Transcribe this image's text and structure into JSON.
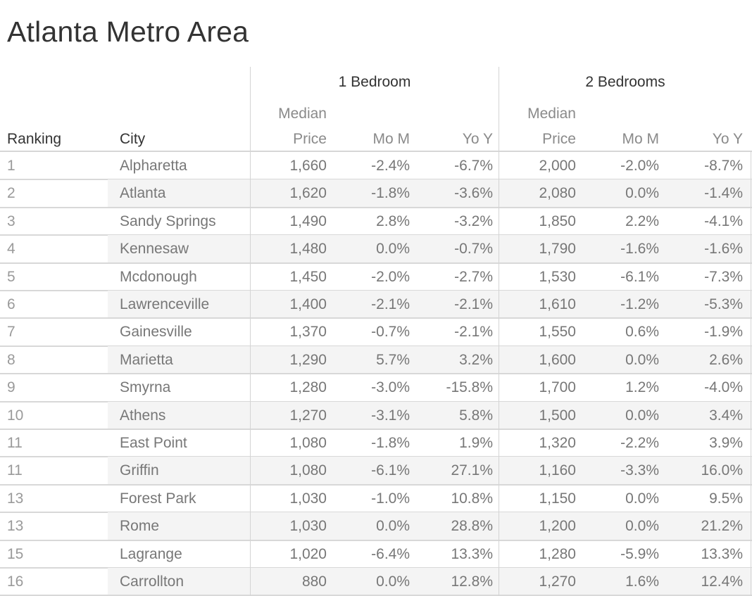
{
  "title": "Atlanta Metro Area",
  "headers": {
    "ranking": "Ranking",
    "city": "City",
    "group1": "1 Bedroom",
    "group2": "2 Bedrooms",
    "median_top": "Median",
    "median_bottom": "Price",
    "mom": "Mo M",
    "yoy": "Yo Y"
  },
  "rows": [
    {
      "rank": "1",
      "city": "Alpharetta",
      "p1": "1,660",
      "m1": "-2.4%",
      "y1": "-6.7%",
      "p2": "2,000",
      "m2": "-2.0%",
      "y2": "-8.7%"
    },
    {
      "rank": "2",
      "city": "Atlanta",
      "p1": "1,620",
      "m1": "-1.8%",
      "y1": "-3.6%",
      "p2": "2,080",
      "m2": "0.0%",
      "y2": "-1.4%"
    },
    {
      "rank": "3",
      "city": "Sandy Springs",
      "p1": "1,490",
      "m1": "2.8%",
      "y1": "-3.2%",
      "p2": "1,850",
      "m2": "2.2%",
      "y2": "-4.1%"
    },
    {
      "rank": "4",
      "city": "Kennesaw",
      "p1": "1,480",
      "m1": "0.0%",
      "y1": "-0.7%",
      "p2": "1,790",
      "m2": "-1.6%",
      "y2": "-1.6%"
    },
    {
      "rank": "5",
      "city": "Mcdonough",
      "p1": "1,450",
      "m1": "-2.0%",
      "y1": "-2.7%",
      "p2": "1,530",
      "m2": "-6.1%",
      "y2": "-7.3%"
    },
    {
      "rank": "6",
      "city": "Lawrenceville",
      "p1": "1,400",
      "m1": "-2.1%",
      "y1": "-2.1%",
      "p2": "1,610",
      "m2": "-1.2%",
      "y2": "-5.3%"
    },
    {
      "rank": "7",
      "city": "Gainesville",
      "p1": "1,370",
      "m1": "-0.7%",
      "y1": "-2.1%",
      "p2": "1,550",
      "m2": "0.6%",
      "y2": "-1.9%"
    },
    {
      "rank": "8",
      "city": "Marietta",
      "p1": "1,290",
      "m1": "5.7%",
      "y1": "3.2%",
      "p2": "1,600",
      "m2": "0.0%",
      "y2": "2.6%"
    },
    {
      "rank": "9",
      "city": "Smyrna",
      "p1": "1,280",
      "m1": "-3.0%",
      "y1": "-15.8%",
      "p2": "1,700",
      "m2": "1.2%",
      "y2": "-4.0%"
    },
    {
      "rank": "10",
      "city": "Athens",
      "p1": "1,270",
      "m1": "-3.1%",
      "y1": "5.8%",
      "p2": "1,500",
      "m2": "0.0%",
      "y2": "3.4%"
    },
    {
      "rank": "11",
      "city": "East Point",
      "p1": "1,080",
      "m1": "-1.8%",
      "y1": "1.9%",
      "p2": "1,320",
      "m2": "-2.2%",
      "y2": "3.9%"
    },
    {
      "rank": "11",
      "city": "Griffin",
      "p1": "1,080",
      "m1": "-6.1%",
      "y1": "27.1%",
      "p2": "1,160",
      "m2": "-3.3%",
      "y2": "16.0%"
    },
    {
      "rank": "13",
      "city": "Forest Park",
      "p1": "1,030",
      "m1": "-1.0%",
      "y1": "10.8%",
      "p2": "1,150",
      "m2": "0.0%",
      "y2": "9.5%"
    },
    {
      "rank": "13",
      "city": "Rome",
      "p1": "1,030",
      "m1": "0.0%",
      "y1": "28.8%",
      "p2": "1,200",
      "m2": "0.0%",
      "y2": "21.2%"
    },
    {
      "rank": "15",
      "city": "Lagrange",
      "p1": "1,020",
      "m1": "-6.4%",
      "y1": "13.3%",
      "p2": "1,280",
      "m2": "-5.9%",
      "y2": "13.3%"
    },
    {
      "rank": "16",
      "city": "Carrollton",
      "p1": "880",
      "m1": "0.0%",
      "y1": "12.8%",
      "p2": "1,270",
      "m2": "1.6%",
      "y2": "12.4%"
    }
  ],
  "colors": {
    "band": "#f4f4f4",
    "grid": "#d6d6d6",
    "text": "#777777",
    "heading": "#333333"
  }
}
